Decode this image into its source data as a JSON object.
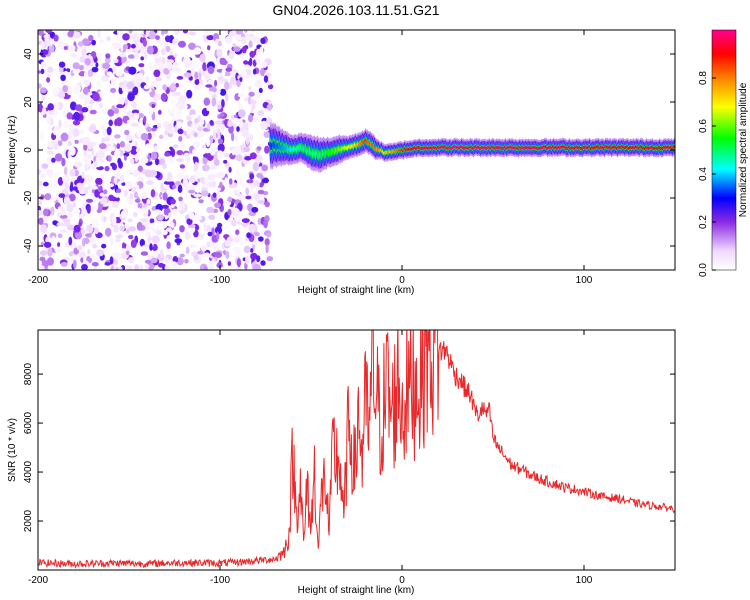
{
  "title": "GN04.2026.103.11.51.G21",
  "colors": {
    "snr_line": "#e8282a",
    "axis": "#000000",
    "background": "#ffffff"
  },
  "chart_data": [
    {
      "type": "heatmap",
      "xlabel": "Height of straight line (km)",
      "ylabel": "Frequency (Hz)",
      "xlim": [
        -200,
        150
      ],
      "ylim": [
        -50,
        50
      ],
      "xticks": [
        "-200",
        "-100",
        "0",
        "100"
      ],
      "yticks": [
        "-40",
        "-20",
        "0",
        "20",
        "40"
      ],
      "grid": false,
      "colorbar": {
        "label": "Normalized spectral amplitude",
        "range": [
          0,
          1
        ],
        "ticks": [
          "0.0",
          "0.2",
          "0.4",
          "0.6",
          "0.8"
        ],
        "colormap": [
          "#ffffff",
          "#f0d8ff",
          "#8a2be2",
          "#0000ff",
          "#00ffff",
          "#00ff00",
          "#ffff00",
          "#ff8000",
          "#ff0000",
          "#ff00a0"
        ]
      },
      "noise_region_x": [
        -200,
        -72
      ],
      "ridge": {
        "x": [
          -72,
          -65,
          -60,
          -55,
          -50,
          -45,
          -40,
          -35,
          -30,
          -25,
          -22,
          -20,
          -18,
          -15,
          -12,
          -10,
          -5,
          0,
          5,
          10,
          20,
          40,
          60,
          80,
          100,
          120,
          150
        ],
        "frequency": [
          2,
          1,
          0,
          1,
          -1,
          -2,
          -1,
          0,
          1,
          2,
          3,
          4,
          3,
          1,
          0,
          -1,
          -1,
          0,
          0.5,
          1,
          1,
          1,
          1,
          1,
          1,
          1,
          1
        ],
        "width": [
          8,
          6,
          5,
          5,
          6,
          6,
          5,
          5,
          4,
          4,
          4,
          4,
          4,
          4,
          3,
          3,
          3,
          3,
          3,
          3,
          3,
          3,
          3,
          3,
          3,
          3,
          3
        ],
        "amplitude": [
          0.35,
          0.4,
          0.45,
          0.5,
          0.5,
          0.5,
          0.55,
          0.6,
          0.65,
          0.7,
          0.8,
          0.85,
          0.8,
          0.8,
          0.75,
          0.7,
          0.75,
          0.85,
          0.9,
          0.92,
          0.95,
          0.95,
          0.95,
          0.93,
          0.92,
          0.9,
          0.9
        ]
      }
    },
    {
      "type": "line",
      "xlabel": "Height of straight line (km)",
      "ylabel": "SNR (10 * v/v)",
      "xlim": [
        -200,
        150
      ],
      "ylim": [
        0,
        9800
      ],
      "xticks": [
        "-200",
        "-100",
        "0",
        "100"
      ],
      "yticks": [
        "2000",
        "4000",
        "6000",
        "8000"
      ],
      "grid": false,
      "series": [
        {
          "x": [
            -200,
            -180,
            -160,
            -140,
            -120,
            -100,
            -90,
            -80,
            -70,
            -65,
            -62,
            -60,
            -58,
            -56,
            -54,
            -52,
            -50,
            -48,
            -46,
            -44,
            -42,
            -40,
            -38,
            -36,
            -34,
            -32,
            -30,
            -28,
            -26,
            -24,
            -22,
            -20,
            -18,
            -16,
            -14,
            -12,
            -10,
            -8,
            -6,
            -4,
            -2,
            0,
            2,
            4,
            6,
            8,
            10,
            12,
            14,
            16,
            18,
            20,
            22,
            24,
            26,
            28,
            30,
            32,
            34,
            36,
            38,
            40,
            42,
            44,
            46,
            48,
            50,
            52,
            54,
            56,
            58,
            60,
            62,
            64,
            66,
            68,
            70,
            75,
            80,
            85,
            90,
            95,
            100,
            105,
            110,
            115,
            120,
            125,
            130,
            135,
            140,
            145,
            150
          ],
          "values": [
            300,
            250,
            280,
            260,
            300,
            280,
            320,
            380,
            450,
            700,
            1500,
            4800,
            2200,
            3800,
            1000,
            3500,
            1600,
            4200,
            800,
            3300,
            3700,
            1500,
            4900,
            4500,
            4300,
            2000,
            5200,
            5800,
            3800,
            6500,
            4600,
            6700,
            5600,
            8500,
            7000,
            5800,
            6700,
            7600,
            6200,
            6900,
            7900,
            6500,
            7200,
            7500,
            7800,
            7600,
            8000,
            8600,
            9000,
            8800,
            9400,
            9100,
            8900,
            9000,
            8600,
            8200,
            7900,
            7800,
            7500,
            7300,
            7100,
            6500,
            6300,
            6600,
            6400,
            6500,
            5400,
            5100,
            4900,
            4700,
            4500,
            4300,
            4200,
            4150,
            4100,
            4000,
            3900,
            3750,
            3600,
            3500,
            3350,
            3300,
            3200,
            3100,
            3000,
            2950,
            2900,
            2800,
            2700,
            2650,
            2600,
            2550,
            2500
          ]
        }
      ]
    }
  ]
}
